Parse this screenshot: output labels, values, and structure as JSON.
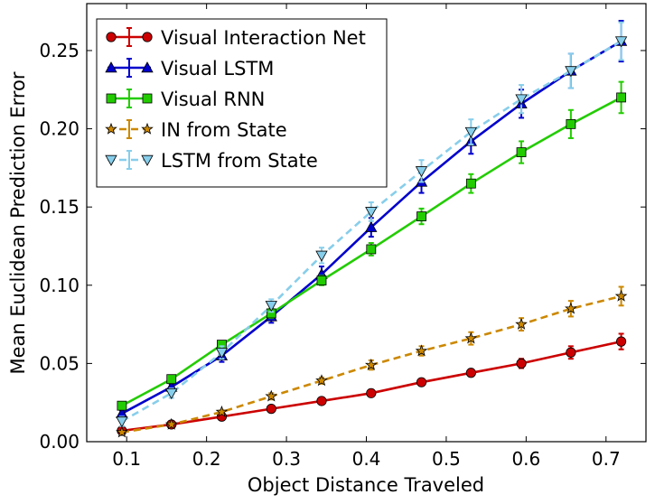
{
  "chart_data": {
    "type": "line",
    "title": "",
    "xlabel": "Object Distance Traveled",
    "ylabel": "Mean Euclidean Prediction Error",
    "xlim": [
      0.05,
      0.75
    ],
    "ylim": [
      0.0,
      0.28
    ],
    "xticks": [
      0.1,
      0.2,
      0.3,
      0.4,
      0.5,
      0.6,
      0.7
    ],
    "xtick_labels": [
      "0.1",
      "0.2",
      "0.3",
      "0.4",
      "0.5",
      "0.6",
      "0.7"
    ],
    "yticks": [
      0.0,
      0.05,
      0.1,
      0.15,
      0.2,
      0.25
    ],
    "ytick_labels": [
      "0.00",
      "0.05",
      "0.10",
      "0.15",
      "0.20",
      "0.25"
    ],
    "grid": false,
    "legend_position": "top-left",
    "x": [
      0.094,
      0.156,
      0.219,
      0.281,
      0.344,
      0.406,
      0.469,
      0.531,
      0.594,
      0.656,
      0.719
    ],
    "series": [
      {
        "name": "Visual Interaction Net",
        "color": "#cc0000",
        "marker": "circle",
        "linestyle": "solid",
        "values": [
          0.007,
          0.011,
          0.016,
          0.021,
          0.026,
          0.031,
          0.038,
          0.044,
          0.05,
          0.057,
          0.064
        ],
        "errors": [
          0.002,
          0.001,
          0.001,
          0.001,
          0.001,
          0.001,
          0.001,
          0.002,
          0.003,
          0.004,
          0.005
        ]
      },
      {
        "name": "Visual LSTM",
        "color": "#0000cc",
        "marker": "triangle-up",
        "linestyle": "solid",
        "values": [
          0.018,
          0.035,
          0.055,
          0.08,
          0.107,
          0.137,
          0.166,
          0.192,
          0.216,
          0.237,
          0.256
        ],
        "errors": [
          0.002,
          0.002,
          0.004,
          0.004,
          0.005,
          0.006,
          0.007,
          0.008,
          0.009,
          0.011,
          0.013
        ]
      },
      {
        "name": "Visual RNN",
        "color": "#22cc00",
        "marker": "square",
        "linestyle": "solid",
        "values": [
          0.023,
          0.04,
          0.062,
          0.082,
          0.103,
          0.123,
          0.144,
          0.165,
          0.185,
          0.203,
          0.22
        ],
        "errors": [
          0.002,
          0.002,
          0.002,
          0.003,
          0.003,
          0.004,
          0.005,
          0.006,
          0.007,
          0.009,
          0.01
        ]
      },
      {
        "name": "IN from State",
        "color": "#cc8800",
        "marker": "star",
        "linestyle": "dashed",
        "values": [
          0.006,
          0.011,
          0.019,
          0.029,
          0.039,
          0.049,
          0.058,
          0.066,
          0.075,
          0.085,
          0.093
        ],
        "errors": [
          0.001,
          0.001,
          0.001,
          0.002,
          0.002,
          0.003,
          0.003,
          0.004,
          0.004,
          0.005,
          0.006
        ]
      },
      {
        "name": "LSTM from State",
        "color": "#87ceeb",
        "marker": "triangle-down",
        "linestyle": "dashed",
        "values": [
          0.013,
          0.031,
          0.057,
          0.087,
          0.119,
          0.147,
          0.173,
          0.198,
          0.219,
          0.237,
          0.256
        ],
        "errors": [
          0.003,
          0.003,
          0.004,
          0.004,
          0.005,
          0.006,
          0.007,
          0.008,
          0.009,
          0.011,
          0.012
        ]
      }
    ]
  }
}
